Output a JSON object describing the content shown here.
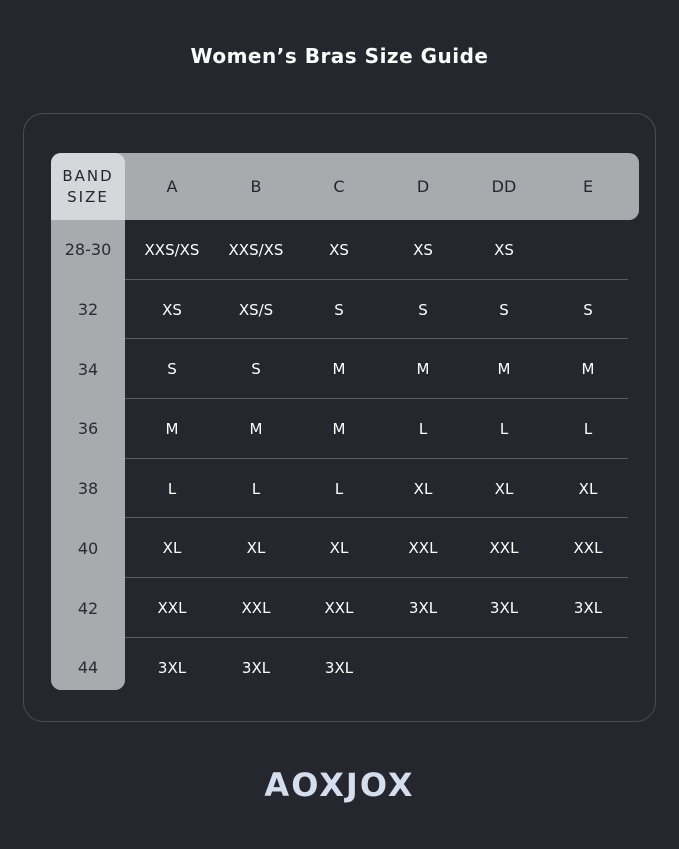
{
  "title": "Women’s Bras Size Guide",
  "band_header": [
    "BAND",
    "SIZE"
  ],
  "cups": [
    "A",
    "B",
    "C",
    "D",
    "DD",
    "E"
  ],
  "rows": [
    {
      "band": "28-30",
      "sizes": [
        "XXS/XS",
        "XXS/XS",
        "XS",
        "XS",
        "XS",
        ""
      ]
    },
    {
      "band": "32",
      "sizes": [
        "XS",
        "XS/S",
        "S",
        "S",
        "S",
        "S"
      ]
    },
    {
      "band": "34",
      "sizes": [
        "S",
        "S",
        "M",
        "M",
        "M",
        "M"
      ]
    },
    {
      "band": "36",
      "sizes": [
        "M",
        "M",
        "M",
        "L",
        "L",
        "L"
      ]
    },
    {
      "band": "38",
      "sizes": [
        "L",
        "L",
        "L",
        "XL",
        "XL",
        "XL"
      ]
    },
    {
      "band": "40",
      "sizes": [
        "XL",
        "XL",
        "XL",
        "XXL",
        "XXL",
        "XXL"
      ]
    },
    {
      "band": "42",
      "sizes": [
        "XXL",
        "XXL",
        "XXL",
        "3XL",
        "3XL",
        "3XL"
      ]
    },
    {
      "band": "44",
      "sizes": [
        "3XL",
        "3XL",
        "3XL",
        "",
        "",
        ""
      ]
    }
  ],
  "brand": "AOXJOX"
}
